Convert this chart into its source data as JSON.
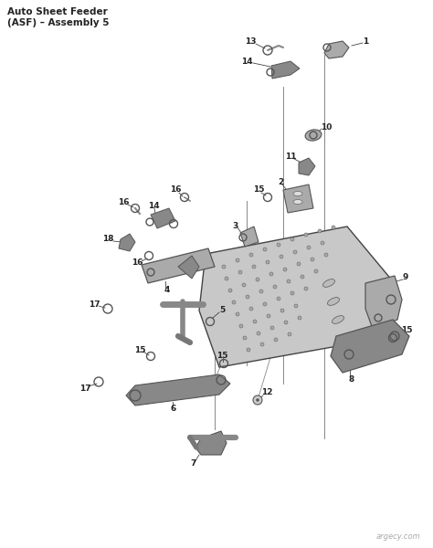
{
  "title_line1": "Auto Sheet Feeder",
  "title_line2": "(ASF) – Assembly 5",
  "watermark": "argecy.com",
  "bg_color": "#ffffff",
  "line_color": "#444444",
  "part_color": "#888888",
  "part_color2": "#aaaaaa",
  "dark_color": "#222222",
  "title_fontsize": 7.5,
  "label_fontsize": 6.5,
  "figsize": [
    4.74,
    6.0
  ],
  "dpi": 100
}
